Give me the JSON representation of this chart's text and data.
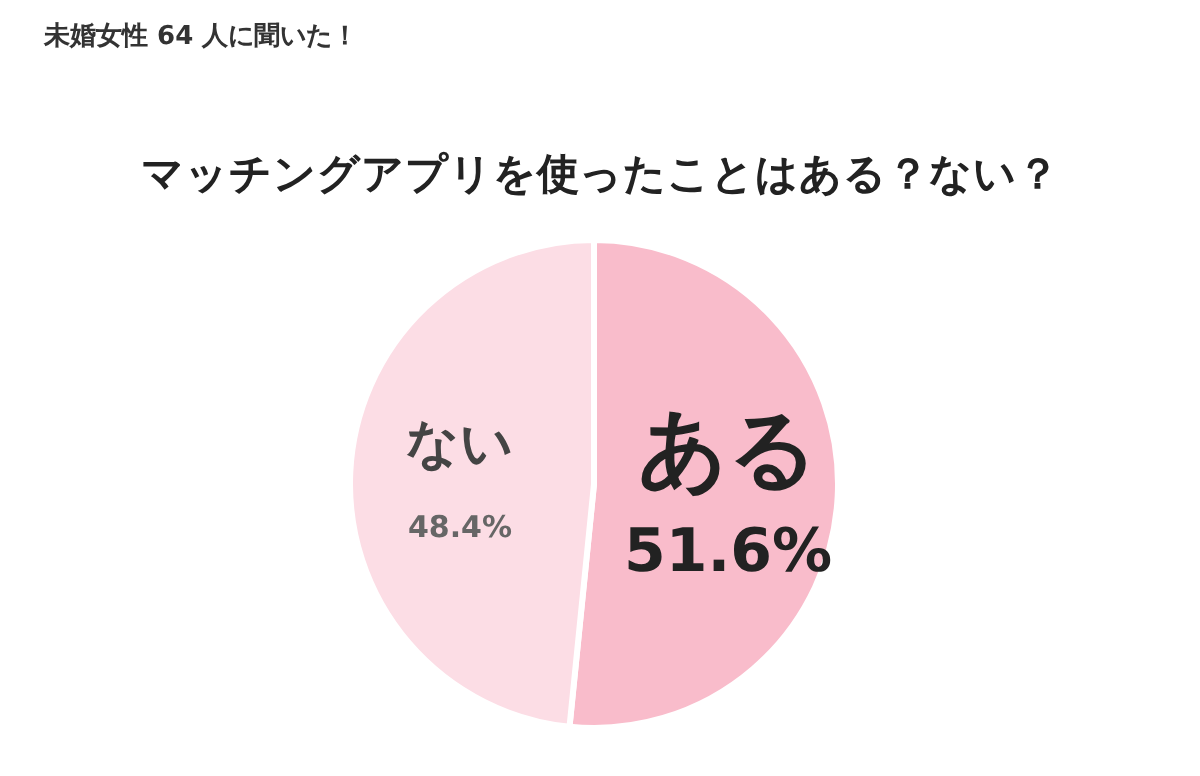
{
  "chart_data": {
    "type": "pie",
    "title": "マッチングアプリを使ったことはある？ない？",
    "subtitle": "未婚女性 64 人に聞いた！",
    "categories": [
      "ある",
      "ない"
    ],
    "values": [
      51.6,
      48.4
    ],
    "colors": [
      "#f9bccb",
      "#fcdde5"
    ],
    "value_labels": [
      "51.6%",
      "48.4%"
    ]
  }
}
